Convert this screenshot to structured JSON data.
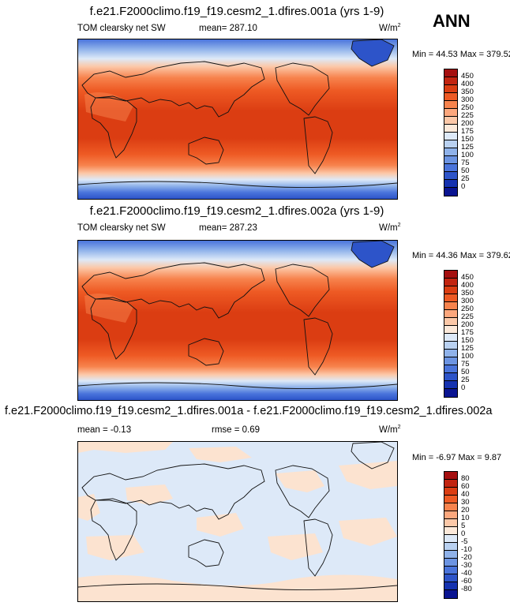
{
  "season": "ANN",
  "panels": [
    {
      "title": "f.e21.F2000climo.f19_f19.cesm2_1.dfires.001a (yrs 1-9)",
      "left_label": "TOM clearsky net SW",
      "mean_label": "mean= 287.10",
      "units": "W/m",
      "units_sup": "2",
      "minmax": "Min = 44.53 Max = 379.52",
      "levels": [
        "450",
        "400",
        "350",
        "300",
        "250",
        "225",
        "200",
        "175",
        "150",
        "125",
        "100",
        "75",
        "50",
        "25",
        "0"
      ],
      "colors": [
        "#a50f0f",
        "#c22410",
        "#db3d12",
        "#ee5a24",
        "#f7834d",
        "#fca77d",
        "#fcc8a8",
        "#fce9da",
        "#dde9f8",
        "#b9d1f1",
        "#8fb2ea",
        "#6c94e2",
        "#4a74db",
        "#2d54c9",
        "#1532b0",
        "#0a1491"
      ]
    },
    {
      "title": "f.e21.F2000climo.f19_f19.cesm2_1.dfires.002a (yrs 1-9)",
      "left_label": "TOM clearsky net SW",
      "mean_label": "mean= 287.23",
      "units": "W/m",
      "units_sup": "2",
      "minmax": "Min = 44.36 Max = 379.62",
      "levels": [
        "450",
        "400",
        "350",
        "300",
        "250",
        "225",
        "200",
        "175",
        "150",
        "125",
        "100",
        "75",
        "50",
        "25",
        "0"
      ],
      "colors": [
        "#a50f0f",
        "#c22410",
        "#db3d12",
        "#ee5a24",
        "#f7834d",
        "#fca77d",
        "#fcc8a8",
        "#fce9da",
        "#dde9f8",
        "#b9d1f1",
        "#8fb2ea",
        "#6c94e2",
        "#4a74db",
        "#2d54c9",
        "#1532b0",
        "#0a1491"
      ]
    },
    {
      "title": "f.e21.F2000climo.f19_f19.cesm2_1.dfires.001a - f.e21.F2000climo.f19_f19.cesm2_1.dfires.002a",
      "left_label": "mean = -0.13",
      "mean_label": "rmse = 0.69",
      "units": "W/m",
      "units_sup": "2",
      "minmax": "Min = -6.97 Max = 9.87",
      "levels": [
        "80",
        "60",
        "40",
        "30",
        "20",
        "10",
        "5",
        "0",
        "-5",
        "-10",
        "-20",
        "-30",
        "-40",
        "-60",
        "-80"
      ],
      "colors": [
        "#a50f0f",
        "#c22410",
        "#db3d12",
        "#ee5a24",
        "#f7834d",
        "#fca77d",
        "#fcc8a8",
        "#fce9da",
        "#dde9f8",
        "#b9d1f1",
        "#8fb2ea",
        "#6c94e2",
        "#4a74db",
        "#2d54c9",
        "#1532b0",
        "#0a1491"
      ]
    }
  ]
}
